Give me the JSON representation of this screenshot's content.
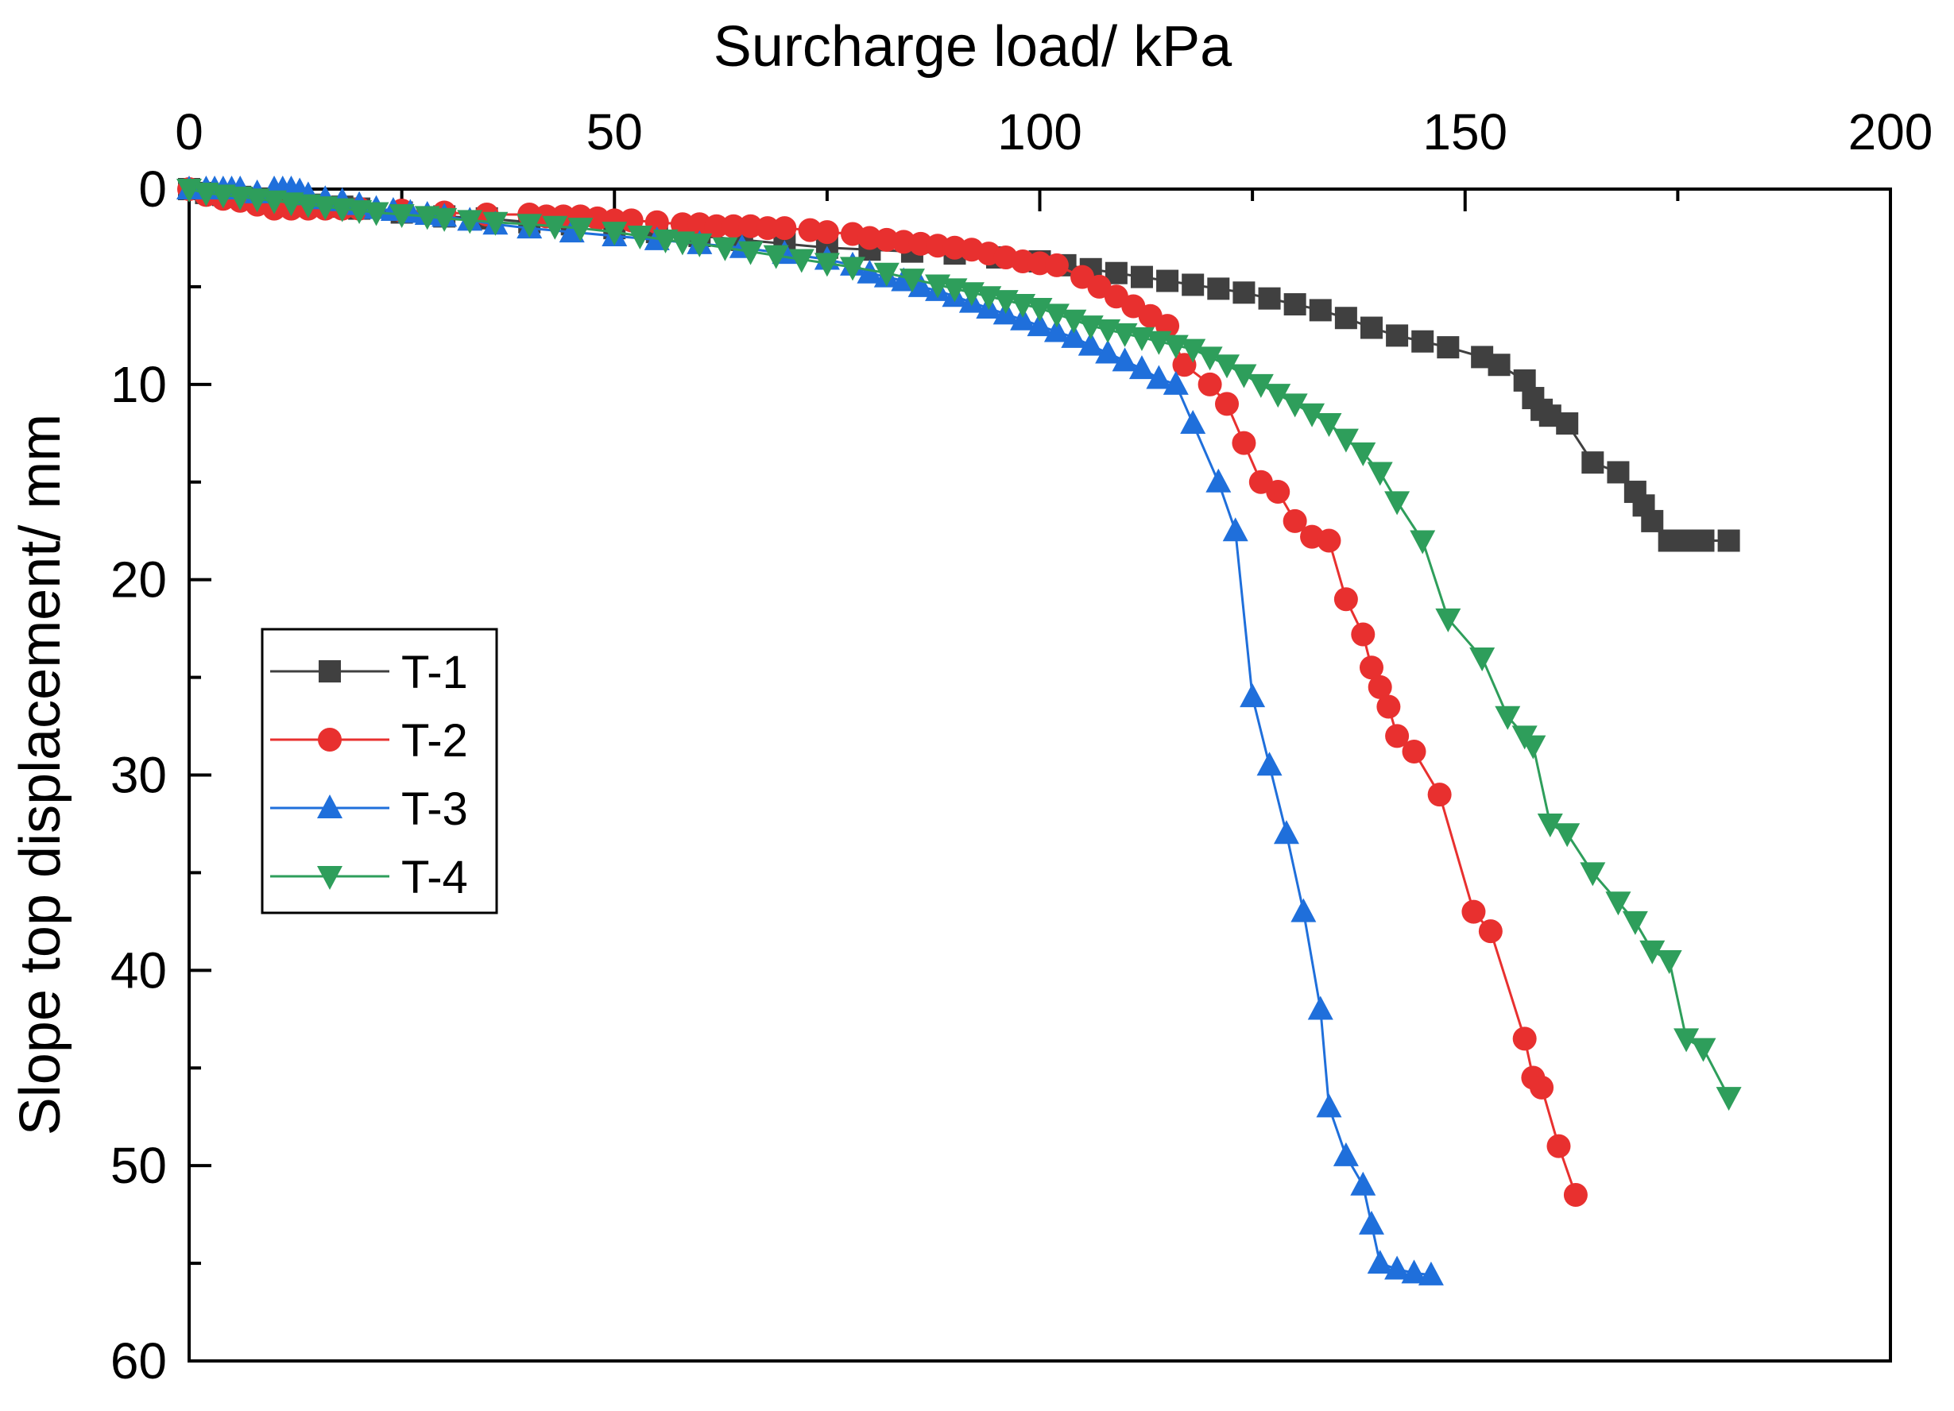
{
  "chart_data": {
    "type": "line",
    "title": "",
    "xlabel": "Surcharge load/ kPa",
    "ylabel": "Slope top displacement/ mm",
    "xlim": [
      0,
      200
    ],
    "ylim": [
      0,
      60
    ],
    "y_inverted": true,
    "x_axis_position": "top",
    "x_ticks": [
      0,
      50,
      100,
      150,
      200
    ],
    "y_ticks": [
      0,
      10,
      20,
      30,
      40,
      50,
      60
    ],
    "x_tick_labels": [
      "0",
      "50",
      "100",
      "150",
      "200"
    ],
    "y_tick_labels": [
      "0",
      "10",
      "20",
      "30",
      "40",
      "50",
      "60"
    ],
    "grid": false,
    "legend_position": "middle-left",
    "series": [
      {
        "name": "T-1",
        "color": "#404040",
        "marker": "square",
        "x": [
          0,
          2,
          4,
          6,
          8,
          10,
          12,
          15,
          18,
          20,
          25,
          30,
          35,
          40,
          45,
          50,
          55,
          60,
          65,
          70,
          75,
          80,
          85,
          90,
          95,
          100,
          103,
          106,
          109,
          112,
          115,
          118,
          121,
          124,
          127,
          130,
          133,
          136,
          139,
          142,
          145,
          148,
          152,
          154,
          157,
          158,
          159,
          160,
          162,
          165,
          168,
          170,
          171,
          172,
          174,
          176,
          178,
          181
        ],
        "y": [
          0,
          0.2,
          0.3,
          0.4,
          0.5,
          0.6,
          0.7,
          0.8,
          0.9,
          1.0,
          1.2,
          1.4,
          1.5,
          1.7,
          1.8,
          2.0,
          2.2,
          2.4,
          2.6,
          2.8,
          3.0,
          3.1,
          3.2,
          3.3,
          3.5,
          3.7,
          3.9,
          4.1,
          4.3,
          4.5,
          4.7,
          4.9,
          5.1,
          5.3,
          5.6,
          5.9,
          6.2,
          6.6,
          7.1,
          7.5,
          7.8,
          8.1,
          8.6,
          9.0,
          9.8,
          10.7,
          11.3,
          11.6,
          12.0,
          14.0,
          14.5,
          15.5,
          16.2,
          17.0,
          18.0,
          18.0,
          18.0,
          18.0
        ]
      },
      {
        "name": "T-2",
        "color": "#e8302f",
        "marker": "circle",
        "x": [
          0,
          2,
          4,
          6,
          8,
          10,
          12,
          14,
          16,
          18,
          20,
          25,
          30,
          35,
          40,
          42,
          44,
          46,
          48,
          50,
          52,
          55,
          58,
          60,
          62,
          64,
          66,
          68,
          70,
          73,
          75,
          78,
          80,
          82,
          84,
          86,
          88,
          90,
          92,
          94,
          96,
          98,
          100,
          102,
          105,
          107,
          109,
          111,
          113,
          115,
          117,
          120,
          122,
          124,
          126,
          128,
          130,
          132,
          134,
          136,
          138,
          139,
          140,
          141,
          142,
          144,
          147,
          151,
          153,
          157,
          158,
          159,
          161,
          163
        ],
        "y": [
          0,
          0.3,
          0.5,
          0.6,
          0.8,
          1.0,
          1.0,
          1.0,
          1.0,
          1.0,
          1.0,
          1.1,
          1.2,
          1.3,
          1.3,
          1.4,
          1.4,
          1.4,
          1.5,
          1.6,
          1.6,
          1.7,
          1.8,
          1.8,
          1.9,
          1.9,
          1.9,
          2.0,
          2.0,
          2.1,
          2.2,
          2.3,
          2.5,
          2.6,
          2.7,
          2.8,
          2.9,
          3.0,
          3.1,
          3.3,
          3.5,
          3.7,
          3.8,
          3.9,
          4.5,
          5.0,
          5.5,
          6.0,
          6.5,
          7.0,
          9.0,
          10.0,
          11.0,
          13.0,
          15.0,
          15.5,
          17.0,
          17.8,
          18.0,
          21.0,
          22.8,
          24.5,
          25.5,
          26.5,
          28.0,
          28.8,
          31.0,
          37.0,
          38.0,
          43.5,
          45.5,
          46.0,
          49.0,
          51.5
        ]
      },
      {
        "name": "T-3",
        "color": "#1f6fdb",
        "marker": "triangle-up",
        "x": [
          0,
          2,
          3,
          4,
          5,
          6,
          8,
          10,
          11,
          12,
          13,
          14,
          16,
          18,
          20,
          22,
          24,
          26,
          28,
          30,
          33,
          36,
          40,
          45,
          50,
          55,
          60,
          65,
          70,
          75,
          78,
          80,
          82,
          84,
          86,
          88,
          90,
          92,
          94,
          96,
          98,
          100,
          102,
          104,
          106,
          108,
          110,
          112,
          114,
          116,
          118,
          121,
          123,
          125,
          127,
          129,
          131,
          133,
          134,
          136,
          138,
          139,
          140,
          142,
          144,
          146
        ],
        "y": [
          0,
          0.0,
          0.0,
          0.0,
          0.0,
          0.0,
          0.2,
          0.0,
          0.0,
          0.0,
          0.1,
          0.3,
          0.5,
          0.6,
          0.8,
          1.0,
          1.1,
          1.2,
          1.3,
          1.4,
          1.6,
          1.8,
          2.0,
          2.2,
          2.4,
          2.6,
          2.8,
          3.0,
          3.3,
          3.6,
          3.9,
          4.3,
          4.5,
          4.7,
          5.0,
          5.2,
          5.5,
          5.8,
          6.1,
          6.4,
          6.7,
          7.0,
          7.3,
          7.6,
          8.0,
          8.4,
          8.8,
          9.2,
          9.7,
          10.0,
          12.0,
          15.0,
          17.5,
          26.0,
          29.5,
          33.0,
          37.0,
          42.0,
          47.0,
          49.5,
          51.0,
          53.0,
          55.0,
          55.3,
          55.5,
          55.6
        ]
      },
      {
        "name": "T-4",
        "color": "#2e9e5b",
        "marker": "triangle-down",
        "x": [
          0,
          2,
          4,
          6,
          8,
          10,
          12,
          14,
          16,
          18,
          20,
          22,
          25,
          28,
          30,
          33,
          36,
          40,
          43,
          46,
          50,
          53,
          56,
          58,
          60,
          63,
          66,
          69,
          72,
          75,
          78,
          82,
          85,
          88,
          90,
          92,
          94,
          96,
          98,
          100,
          102,
          104,
          106,
          108,
          110,
          112,
          114,
          116,
          118,
          120,
          122,
          124,
          126,
          128,
          130,
          132,
          134,
          136,
          138,
          140,
          142,
          145,
          148,
          152,
          155,
          157,
          158,
          160,
          162,
          165,
          168,
          170,
          172,
          174,
          176,
          178,
          181
        ],
        "y": [
          0,
          0.2,
          0.3,
          0.4,
          0.5,
          0.6,
          0.7,
          0.8,
          0.9,
          1.0,
          1.1,
          1.2,
          1.3,
          1.4,
          1.5,
          1.6,
          1.7,
          1.8,
          1.9,
          2.0,
          2.2,
          2.4,
          2.6,
          2.7,
          2.8,
          3.0,
          3.2,
          3.4,
          3.6,
          3.8,
          4.0,
          4.3,
          4.6,
          4.9,
          5.1,
          5.3,
          5.5,
          5.7,
          5.9,
          6.1,
          6.4,
          6.7,
          7.0,
          7.2,
          7.4,
          7.6,
          7.8,
          8.0,
          8.2,
          8.6,
          9.0,
          9.5,
          10.0,
          10.5,
          11.0,
          11.5,
          12.0,
          12.8,
          13.5,
          14.5,
          16.0,
          18.0,
          22.0,
          24.0,
          27.0,
          28.0,
          28.5,
          32.5,
          33.0,
          35.0,
          36.5,
          37.5,
          39.0,
          39.5,
          43.5,
          44.0,
          46.5
        ]
      }
    ]
  }
}
